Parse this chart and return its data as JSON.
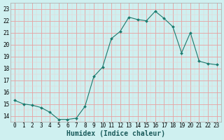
{
  "x": [
    0,
    1,
    2,
    3,
    4,
    5,
    6,
    7,
    8,
    9,
    10,
    11,
    12,
    13,
    14,
    15,
    16,
    17,
    18,
    19,
    20,
    21,
    22,
    23
  ],
  "y": [
    15.3,
    15.0,
    14.9,
    14.7,
    14.3,
    13.7,
    13.7,
    13.8,
    14.8,
    17.3,
    18.1,
    20.5,
    21.1,
    22.3,
    22.1,
    22.0,
    22.8,
    22.2,
    21.5,
    19.3,
    21.0,
    18.6,
    18.4,
    18.3
  ],
  "line_color": "#1a7a6e",
  "marker": "D",
  "marker_size": 2.0,
  "bg_color": "#cff0f0",
  "grid_major_color": "#e8a0a0",
  "grid_minor_color": "#f0cccc",
  "xlabel": "Humidex (Indice chaleur)",
  "yticks": [
    14,
    15,
    16,
    17,
    18,
    19,
    20,
    21,
    22,
    23
  ],
  "xlim": [
    -0.5,
    23.5
  ],
  "ylim": [
    13.5,
    23.5
  ],
  "tick_fontsize": 5.5,
  "xlabel_fontsize": 7.0
}
